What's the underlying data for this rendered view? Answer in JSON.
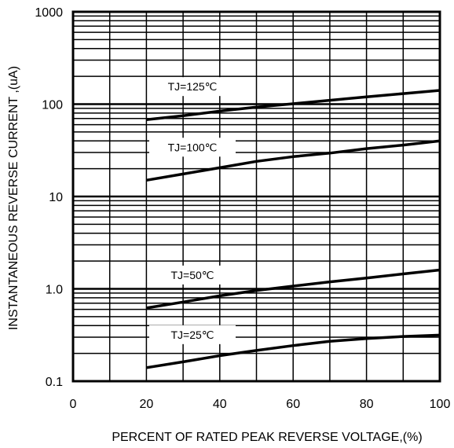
{
  "chart_data": {
    "type": "line",
    "title": "",
    "xlabel": "PERCENT OF RATED PEAK REVERSE VOLTAGE,(%)",
    "ylabel": "INSTANTANEOUS  REVERSE  CURRENT ,(uA)",
    "xlim": [
      0,
      100
    ],
    "ylim": [
      0.1,
      1000
    ],
    "y_scale": "log",
    "grid": true,
    "x_ticks": [
      "0",
      "20",
      "40",
      "60",
      "80",
      "100"
    ],
    "y_ticks": [
      "0.1",
      "1.0",
      "10",
      "100",
      "1000"
    ],
    "series": [
      {
        "name": "TJ=125℃",
        "x": [
          20,
          30,
          40,
          50,
          60,
          70,
          80,
          90,
          100
        ],
        "y": [
          68,
          75,
          84,
          93,
          101,
          110,
          120,
          130,
          141
        ]
      },
      {
        "name": "TJ=100℃",
        "x": [
          20,
          30,
          40,
          50,
          60,
          70,
          80,
          90,
          100
        ],
        "y": [
          15,
          17.5,
          20.5,
          24,
          27,
          29.5,
          33,
          36,
          40
        ]
      },
      {
        "name": "TJ=50℃",
        "x": [
          20,
          30,
          40,
          50,
          60,
          70,
          80,
          90,
          100
        ],
        "y": [
          0.62,
          0.72,
          0.84,
          0.96,
          1.07,
          1.19,
          1.31,
          1.45,
          1.6
        ]
      },
      {
        "name": "TJ=25℃",
        "x": [
          20,
          30,
          40,
          50,
          60,
          70,
          80,
          90,
          100
        ],
        "y": [
          0.14,
          0.162,
          0.189,
          0.215,
          0.243,
          0.27,
          0.29,
          0.305,
          0.315
        ]
      }
    ]
  }
}
